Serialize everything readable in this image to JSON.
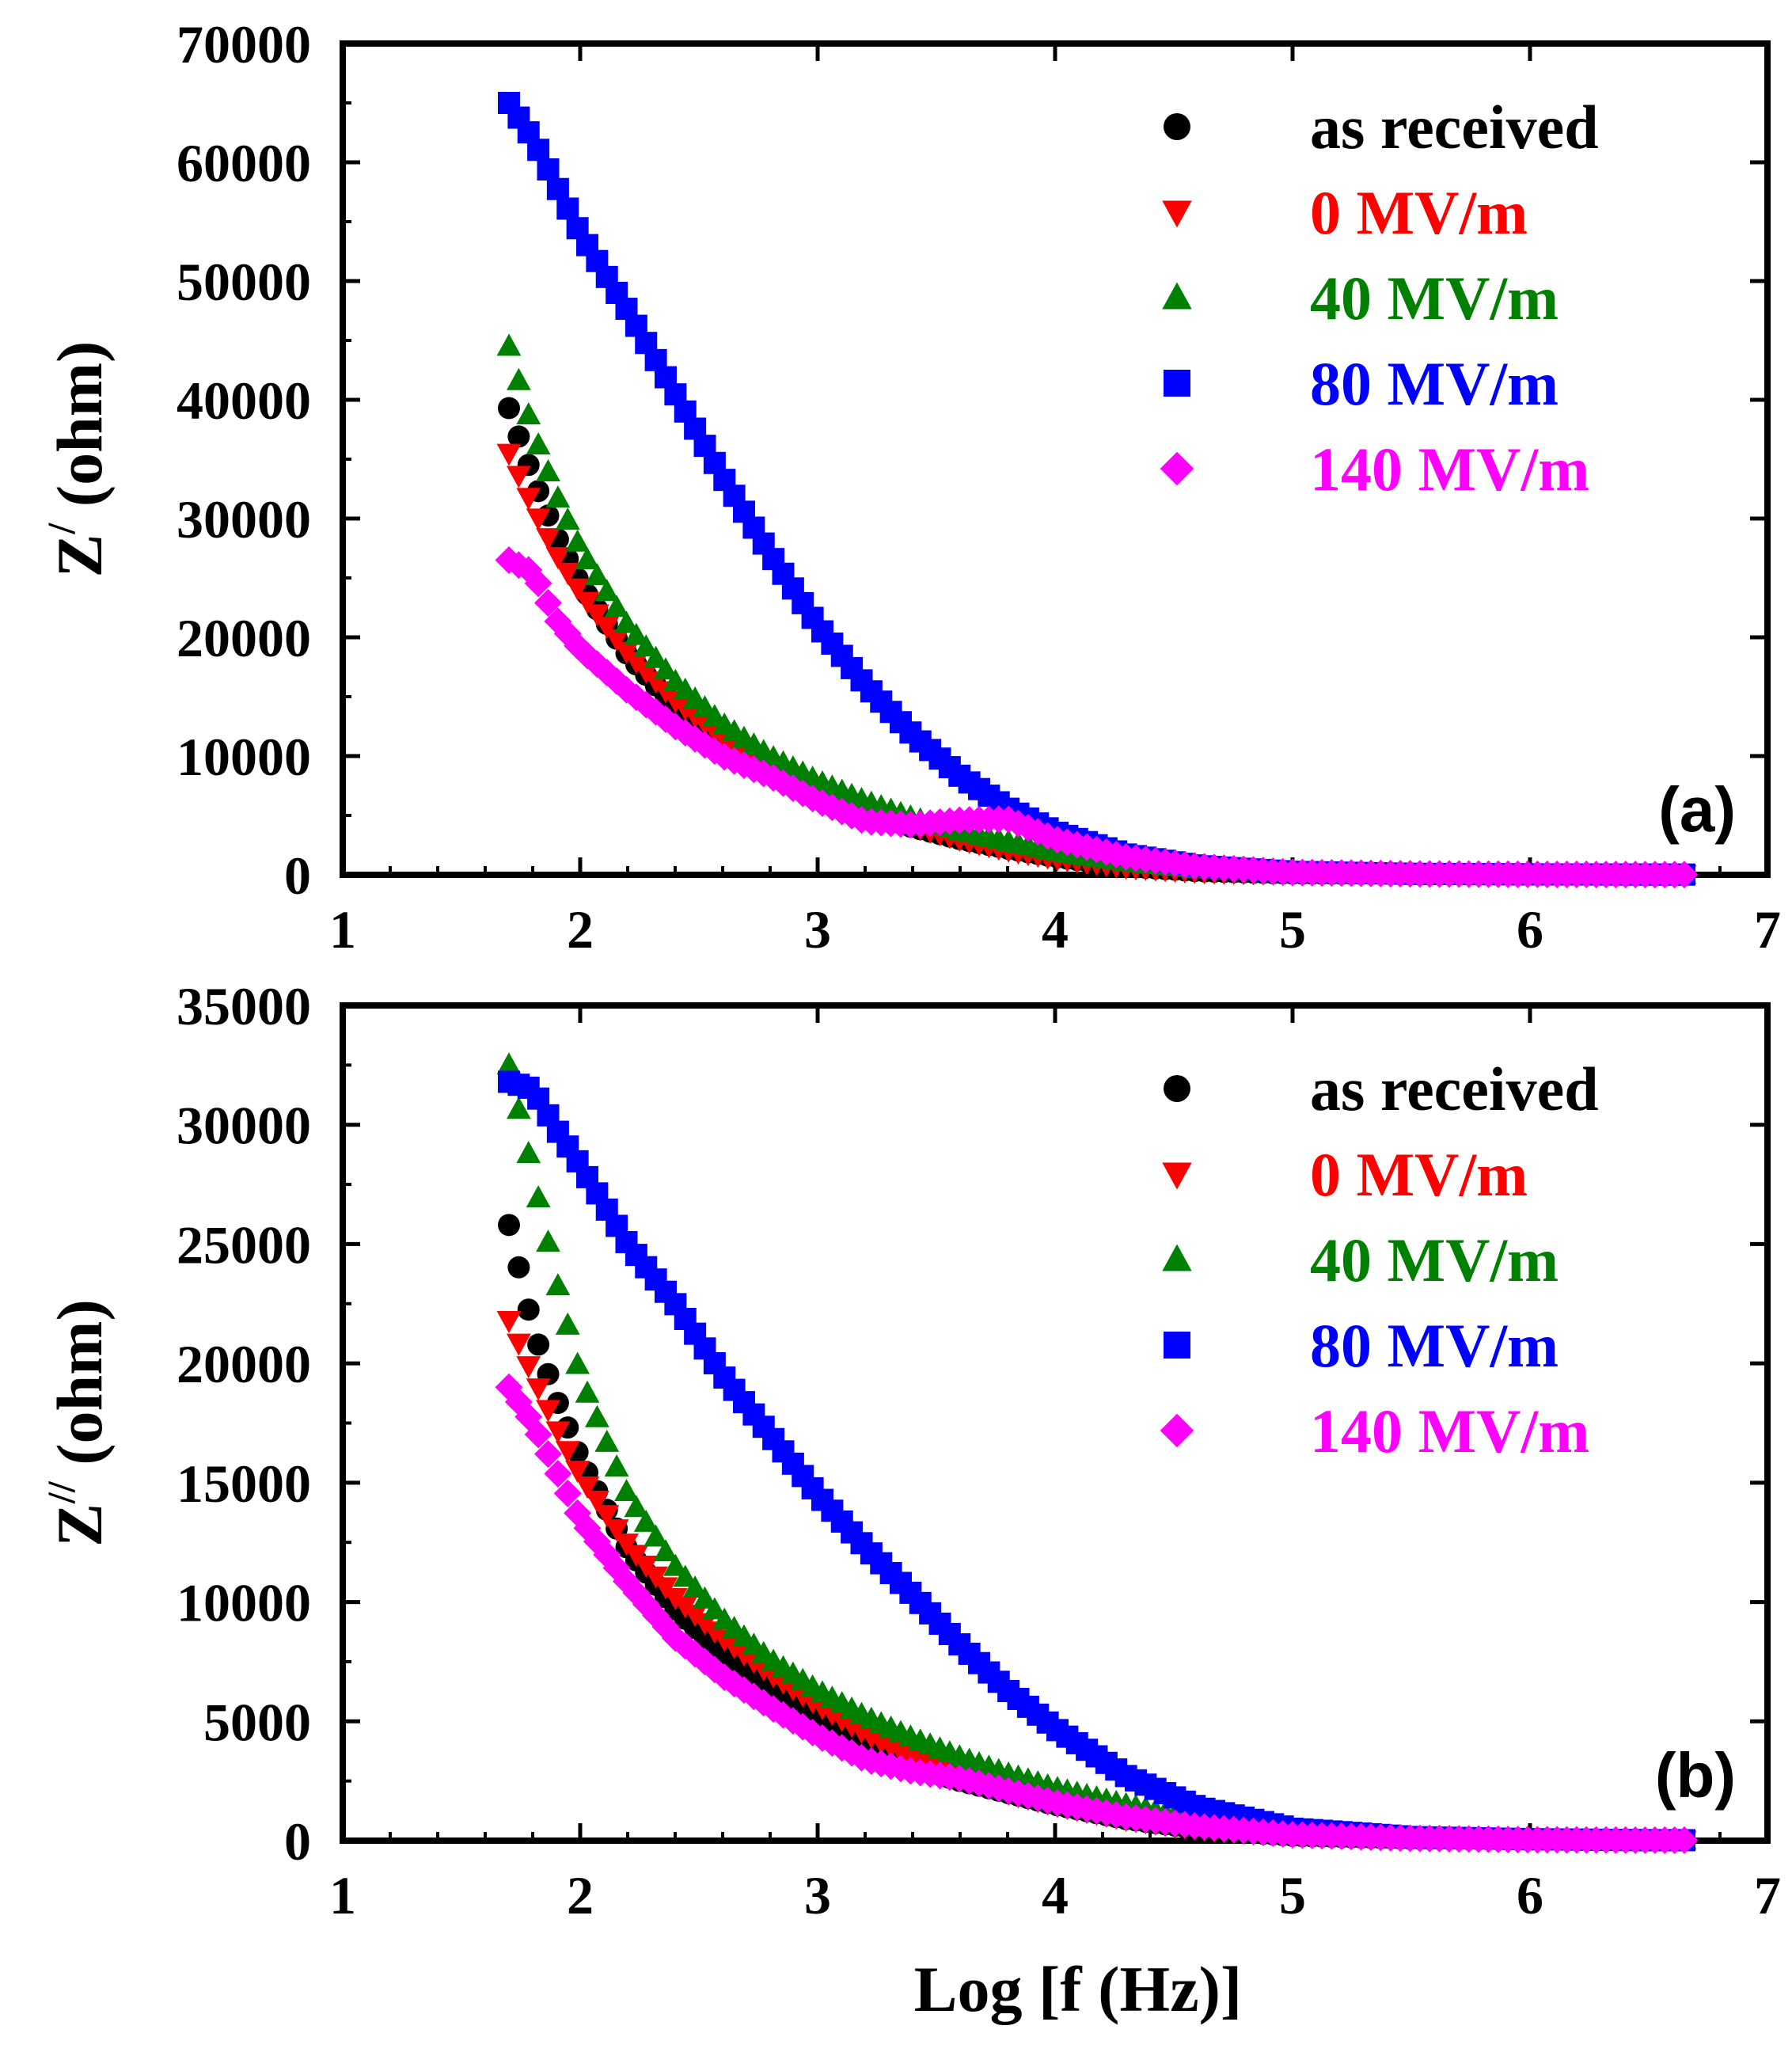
{
  "chart_data": [
    {
      "type": "scatter",
      "panel": "(a)",
      "ylabel_main": "Z",
      "ylabel_sup": "/",
      "ylabel_unit": "(ohm)",
      "xlabel": "",
      "xlim": [
        1,
        7
      ],
      "ylim": [
        0,
        70000
      ],
      "x_ticks": [
        "1",
        "2",
        "3",
        "4",
        "5",
        "6",
        "7"
      ],
      "y_ticks": [
        "0",
        "10000",
        "20000",
        "30000",
        "40000",
        "50000",
        "60000",
        "70000"
      ],
      "legend_position": "top-right",
      "x": [
        1.7,
        1.8,
        1.9,
        2.0,
        2.2,
        2.4,
        2.6,
        2.8,
        3.0,
        3.2,
        3.4,
        3.6,
        3.8,
        4.0,
        4.3,
        4.6,
        5.0,
        5.5,
        6.0,
        6.5,
        6.65
      ],
      "series": [
        {
          "name": "as received",
          "color": "#000000",
          "marker": "circle",
          "values": [
            39300,
            33500,
            28500,
            24500,
            18500,
            14200,
            11000,
            8700,
            6800,
            5300,
            4000,
            3000,
            2200,
            1500,
            700,
            300,
            100,
            50,
            30,
            20,
            20
          ]
        },
        {
          "name": "0 MV/m",
          "color": "#ff0000",
          "marker": "triangle-down",
          "values": [
            35500,
            31000,
            27000,
            23800,
            18700,
            14700,
            11600,
            9100,
            7100,
            5500,
            4100,
            3000,
            2100,
            1400,
            650,
            280,
            100,
            50,
            30,
            20,
            20
          ]
        },
        {
          "name": "40 MV/m",
          "color": "#008000",
          "marker": "triangle-up",
          "values": [
            44500,
            37500,
            32000,
            27500,
            21000,
            16300,
            12700,
            10000,
            7900,
            6200,
            4800,
            3700,
            2800,
            2000,
            1100,
            500,
            150,
            60,
            30,
            20,
            20
          ]
        },
        {
          "name": "80 MV/m",
          "color": "#0000ff",
          "marker": "square",
          "values": [
            65000,
            62000,
            58000,
            54000,
            47500,
            40500,
            33500,
            27000,
            21000,
            16000,
            11800,
            8300,
            5600,
            3600,
            1700,
            750,
            250,
            80,
            40,
            20,
            20
          ]
        },
        {
          "name": "140 MV/m",
          "color": "#ff00ff",
          "marker": "diamond",
          "values": [
            26500,
            25500,
            21500,
            19000,
            15500,
            12500,
            10000,
            8300,
            6200,
            4500,
            4200,
            4600,
            4700,
            3000,
            1500,
            700,
            200,
            80,
            40,
            20,
            20
          ]
        }
      ]
    },
    {
      "type": "scatter",
      "panel": "(b)",
      "ylabel_main": "Z",
      "ylabel_sup": "//",
      "ylabel_unit": "(ohm)",
      "xlabel": "Log [f (Hz)]",
      "xlim": [
        1,
        7
      ],
      "ylim": [
        0,
        35000
      ],
      "x_ticks": [
        "1",
        "2",
        "3",
        "4",
        "5",
        "6",
        "7"
      ],
      "y_ticks": [
        "0",
        "5000",
        "10000",
        "15000",
        "20000",
        "25000",
        "30000",
        "35000"
      ],
      "legend_position": "top-right",
      "x": [
        1.7,
        1.8,
        1.9,
        2.0,
        2.2,
        2.4,
        2.6,
        2.8,
        3.0,
        3.2,
        3.4,
        3.6,
        3.8,
        4.0,
        4.3,
        4.6,
        5.0,
        5.5,
        6.0,
        6.5,
        6.65
      ],
      "series": [
        {
          "name": "as received",
          "color": "#000000",
          "marker": "circle",
          "values": [
            25800,
            21500,
            18500,
            16000,
            12200,
            9700,
            7800,
            6300,
            5000,
            3900,
            3100,
            2500,
            2000,
            1500,
            900,
            500,
            200,
            80,
            40,
            20,
            20
          ]
        },
        {
          "name": "0 MV/m",
          "color": "#ff0000",
          "marker": "triangle-down",
          "values": [
            21800,
            19500,
            17300,
            15300,
            12400,
            10200,
            8500,
            7000,
            5700,
            4500,
            3500,
            2700,
            2000,
            1500,
            900,
            500,
            200,
            80,
            40,
            20,
            20
          ]
        },
        {
          "name": "40 MV/m",
          "color": "#008000",
          "marker": "triangle-up",
          "values": [
            32500,
            28000,
            23500,
            19500,
            14500,
            11500,
            9300,
            7600,
            6300,
            5200,
            4300,
            3500,
            2800,
            2200,
            1500,
            900,
            350,
            120,
            50,
            20,
            20
          ]
        },
        {
          "name": "80 MV/m",
          "color": "#0000ff",
          "marker": "square",
          "values": [
            31800,
            31500,
            29800,
            28300,
            25000,
            22500,
            19500,
            17000,
            14500,
            12300,
            10300,
            8200,
            6300,
            4700,
            2700,
            1400,
            500,
            150,
            60,
            20,
            20
          ]
        },
        {
          "name": "140 MV/m",
          "color": "#ff00ff",
          "marker": "diamond",
          "values": [
            19000,
            17500,
            15500,
            13500,
            10800,
            8500,
            6900,
            5600,
            4400,
            3400,
            2900,
            2600,
            2100,
            1600,
            1000,
            600,
            250,
            100,
            40,
            20,
            20
          ]
        }
      ]
    }
  ]
}
